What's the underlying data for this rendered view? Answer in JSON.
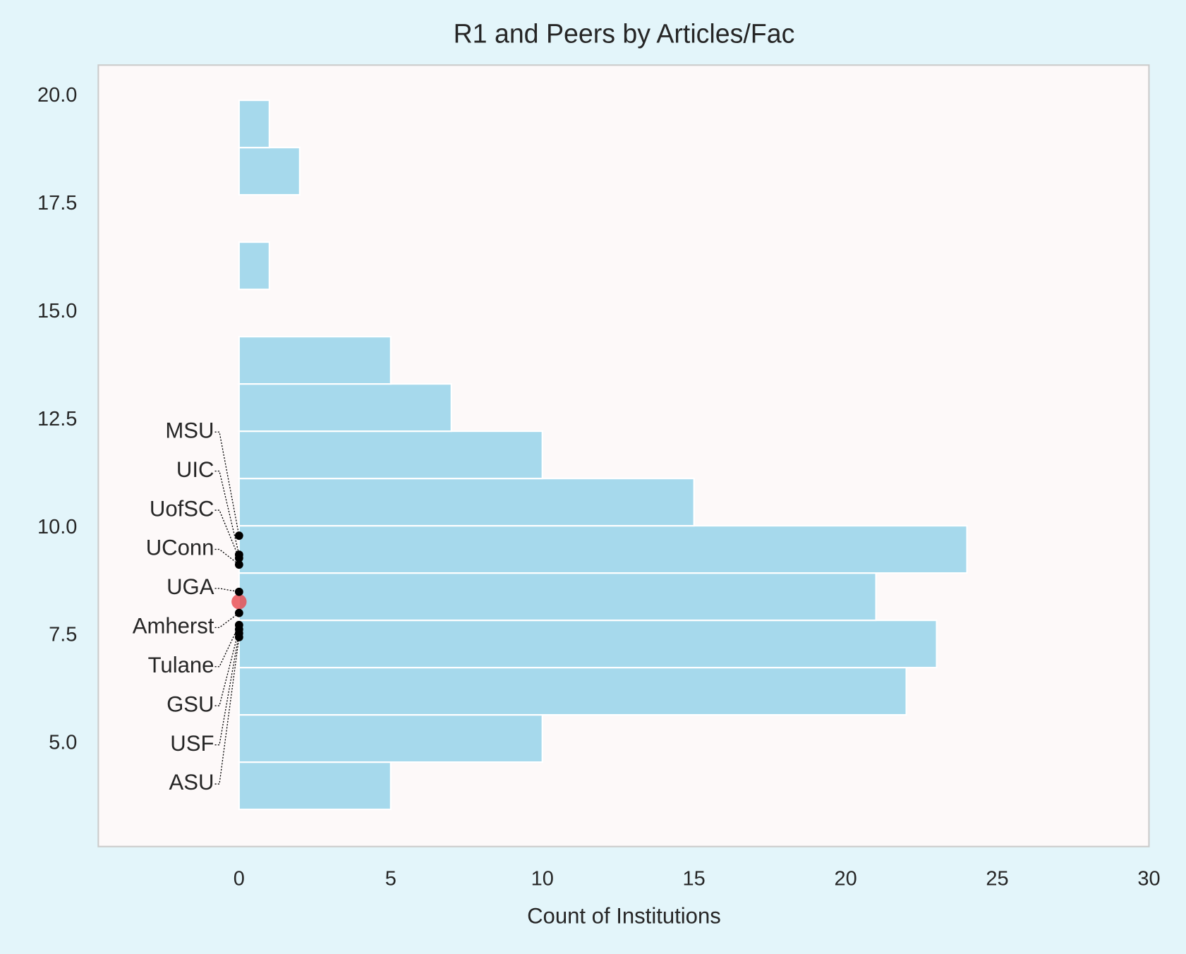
{
  "chart_data": {
    "type": "barh-histogram",
    "title": "R1 and Peers by Articles/Fac",
    "xlabel": "Count of Institutions",
    "bins": [
      3.48,
      4.575,
      5.67,
      6.765,
      7.86,
      8.955,
      10.05,
      11.145,
      12.24,
      13.335,
      14.43,
      15.525,
      16.62,
      17.715,
      18.81,
      19.905
    ],
    "counts": [
      5,
      10,
      22,
      23,
      21,
      24,
      15,
      10,
      7,
      5,
      0,
      1,
      0,
      2,
      1
    ],
    "color": "#a6d9ec",
    "points": [
      {
        "label": "MSU",
        "value": 9.82
      },
      {
        "label": "UIC",
        "value": 9.38
      },
      {
        "label": "UofSC",
        "value": 9.3
      },
      {
        "label": "UConn",
        "value": 9.15
      },
      {
        "label": "UGA",
        "value": 8.52
      },
      {
        "label": "Amherst",
        "value": 8.03
      },
      {
        "label": "Tulane",
        "value": 7.75
      },
      {
        "label": "GSU",
        "value": 7.65
      },
      {
        "label": "USF",
        "value": 7.56
      },
      {
        "label": "ASU",
        "value": 7.47
      }
    ],
    "point_color": "#000000",
    "r1_value": 8.29,
    "r1_color": "#e8474c",
    "xlim": [
      -4.64,
      30
    ],
    "ylim": [
      2.62,
      20.72
    ],
    "xticks": [
      0,
      5,
      10,
      15,
      20,
      25,
      30
    ],
    "yticks": [
      {
        "value": 5,
        "label": "5.0"
      },
      7.5,
      {
        "value": 10,
        "label": "10.0"
      },
      12.5,
      {
        "value": 15,
        "label": "15.0"
      },
      17.5,
      {
        "value": 20,
        "label": "20.0"
      }
    ],
    "grid": false
  }
}
